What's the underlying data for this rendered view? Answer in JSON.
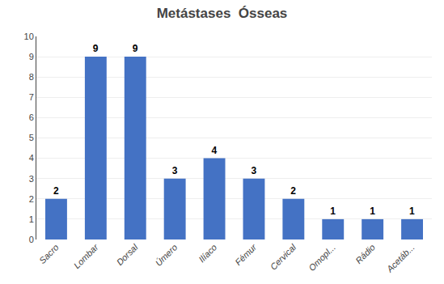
{
  "chart_data": {
    "type": "bar",
    "title": "Metástases  Ósseas",
    "categories": [
      "Sacro",
      "Lombar",
      "Dorsal",
      "Úmero",
      "Ilíaco",
      "Fémur",
      "Cervical",
      "Omopl...",
      "Rádio",
      "Acetáb..."
    ],
    "values": [
      2,
      9,
      9,
      3,
      4,
      3,
      2,
      1,
      1,
      1
    ],
    "color": "#4472C4",
    "ylim": [
      0,
      10
    ],
    "yticks": [
      0,
      1,
      2,
      3,
      4,
      5,
      6,
      7,
      8,
      9,
      10
    ],
    "grid": true,
    "data_labels": true
  }
}
